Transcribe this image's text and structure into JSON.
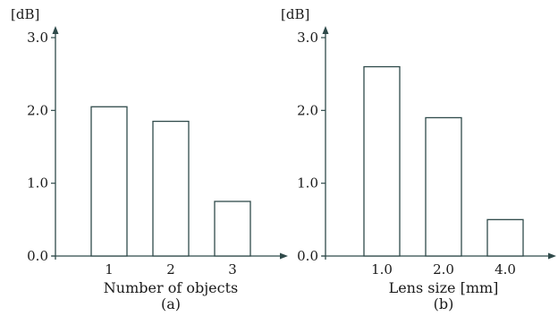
{
  "chart_data": [
    {
      "type": "bar",
      "panel_label": "(a)",
      "xlabel": "Number of objects",
      "ylabel": "[dB]",
      "categories": [
        "1",
        "2",
        "3"
      ],
      "values": [
        2.05,
        1.85,
        0.75
      ],
      "ylim": [
        0,
        3.0
      ],
      "yticks": [
        "0.0",
        "1.0",
        "2.0",
        "3.0"
      ],
      "grid": false,
      "bar_fill": "#ffffff",
      "bar_stroke": "#2f4a4a",
      "axis_color": "#2f4a4a"
    },
    {
      "type": "bar",
      "panel_label": "(b)",
      "xlabel": "Lens size [mm]",
      "ylabel": "[dB]",
      "categories": [
        "1.0",
        "2.0",
        "4.0"
      ],
      "values": [
        2.6,
        1.9,
        0.5
      ],
      "ylim": [
        0,
        3.0
      ],
      "yticks": [
        "0.0",
        "1.0",
        "2.0",
        "3.0"
      ],
      "grid": false,
      "bar_fill": "#ffffff",
      "bar_stroke": "#2f4a4a",
      "axis_color": "#2f4a4a"
    }
  ]
}
